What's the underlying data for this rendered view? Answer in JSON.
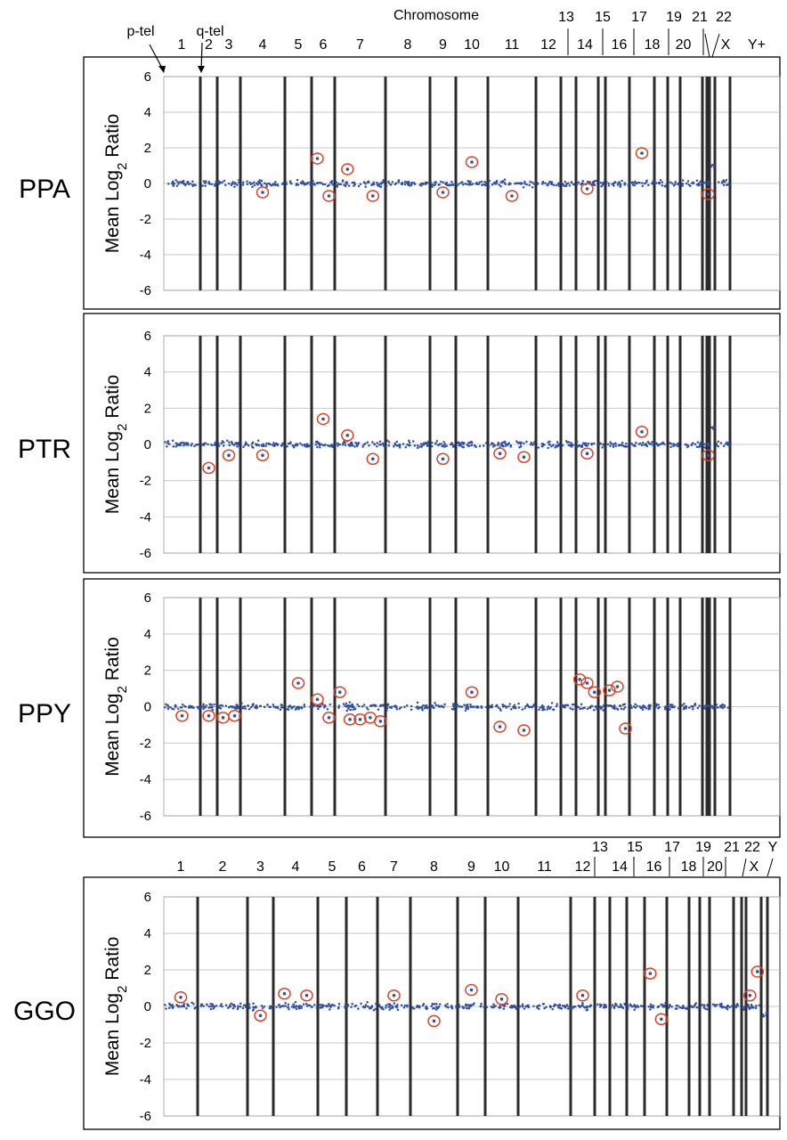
{
  "figure": {
    "top_label": "Chromosome",
    "arrows": [
      "p-tel",
      "q-tel"
    ],
    "ylabel": "Mean Log2 Ratio",
    "y_ticks": [
      "6",
      "4",
      "2",
      "0",
      "-2",
      "-4",
      "-6"
    ],
    "colors": {
      "probe_dots": "#2f50a8",
      "gain_loss_circles": "#e0401f",
      "chromosome_boundaries": "#2b2b2b"
    }
  },
  "chart_data": [
    {
      "type": "scatter",
      "panel": "PPA",
      "ylim": [
        -6,
        6
      ],
      "grid": true,
      "baseline": 0,
      "elevated_segment": {
        "chromosome": "X",
        "value": 1.0
      },
      "circled_regions": [
        {
          "chromosome": "4",
          "value": -0.5
        },
        {
          "chromosome": "6",
          "value": 1.4
        },
        {
          "chromosome": "6",
          "value": -0.7
        },
        {
          "chromosome": "7",
          "value": 0.8
        },
        {
          "chromosome": "7",
          "value": -0.7
        },
        {
          "chromosome": "9",
          "value": -0.5
        },
        {
          "chromosome": "10",
          "value": 1.2
        },
        {
          "chromosome": "11",
          "value": -0.7
        },
        {
          "chromosome": "14",
          "value": -0.3
        },
        {
          "chromosome": "17",
          "value": 1.7
        },
        {
          "chromosome": "22",
          "value": -0.6
        }
      ]
    },
    {
      "type": "scatter",
      "panel": "PTR",
      "ylim": [
        -6,
        6
      ],
      "grid": true,
      "baseline": 0,
      "elevated_segment": {
        "chromosome": "X",
        "value": 0.9
      },
      "circled_regions": [
        {
          "chromosome": "2",
          "value": -1.3
        },
        {
          "chromosome": "3",
          "value": -0.6
        },
        {
          "chromosome": "4",
          "value": -0.6
        },
        {
          "chromosome": "6",
          "value": 1.4
        },
        {
          "chromosome": "7",
          "value": 0.5
        },
        {
          "chromosome": "7",
          "value": -0.8
        },
        {
          "chromosome": "9",
          "value": -0.8
        },
        {
          "chromosome": "11",
          "value": -0.5
        },
        {
          "chromosome": "11",
          "value": -0.7
        },
        {
          "chromosome": "14",
          "value": -0.5
        },
        {
          "chromosome": "17",
          "value": 0.7
        },
        {
          "chromosome": "22",
          "value": -0.6
        }
      ]
    },
    {
      "type": "scatter",
      "panel": "PPY",
      "ylim": [
        -6,
        6
      ],
      "grid": true,
      "baseline": 0,
      "circled_regions": [
        {
          "chromosome": "1",
          "value": -0.5
        },
        {
          "chromosome": "2",
          "value": -0.5
        },
        {
          "chromosome": "3",
          "value": -0.6
        },
        {
          "chromosome": "3",
          "value": -0.5
        },
        {
          "chromosome": "5",
          "value": 1.3
        },
        {
          "chromosome": "6",
          "value": 0.4
        },
        {
          "chromosome": "6",
          "value": -0.6
        },
        {
          "chromosome": "7",
          "value": 0.8
        },
        {
          "chromosome": "7",
          "value": -0.7
        },
        {
          "chromosome": "7",
          "value": -0.7
        },
        {
          "chromosome": "7",
          "value": -0.6
        },
        {
          "chromosome": "7",
          "value": -0.8
        },
        {
          "chromosome": "10",
          "value": 0.8
        },
        {
          "chromosome": "11",
          "value": -1.1
        },
        {
          "chromosome": "11",
          "value": -1.3
        },
        {
          "chromosome": "14",
          "value": 1.5
        },
        {
          "chromosome": "14",
          "value": 1.3
        },
        {
          "chromosome": "14",
          "value": 0.8
        },
        {
          "chromosome": "16",
          "value": 0.9
        },
        {
          "chromosome": "16",
          "value": 1.1
        },
        {
          "chromosome": "16",
          "value": -1.2
        }
      ]
    },
    {
      "type": "scatter",
      "panel": "GGO",
      "ylim": [
        -6,
        6
      ],
      "grid": true,
      "baseline": 0,
      "lowered_segment": {
        "chromosome": "Y",
        "value": -0.4
      },
      "circled_regions": [
        {
          "chromosome": "1",
          "value": 0.5
        },
        {
          "chromosome": "3",
          "value": -0.5
        },
        {
          "chromosome": "4",
          "value": 0.7
        },
        {
          "chromosome": "4",
          "value": 0.6
        },
        {
          "chromosome": "7",
          "value": 0.6
        },
        {
          "chromosome": "8",
          "value": -0.8
        },
        {
          "chromosome": "9",
          "value": 0.9
        },
        {
          "chromosome": "10",
          "value": 0.4
        },
        {
          "chromosome": "12",
          "value": 0.6
        },
        {
          "chromosome": "16",
          "value": 1.8
        },
        {
          "chromosome": "16",
          "value": -0.7
        },
        {
          "chromosome": "X",
          "value": 0.6
        },
        {
          "chromosome": "X",
          "value": 1.9
        }
      ]
    }
  ]
}
